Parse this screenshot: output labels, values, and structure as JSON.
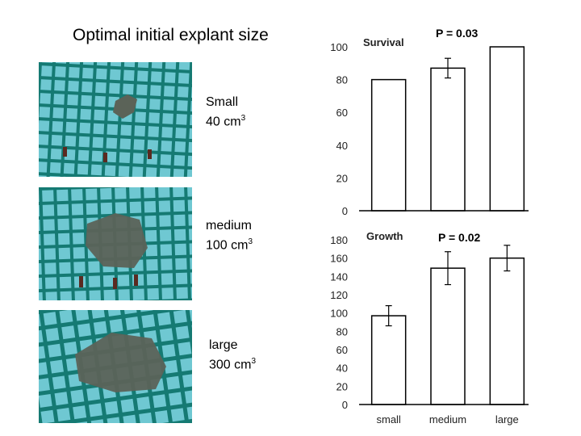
{
  "title": "Optimal initial explant size",
  "explants": [
    {
      "name": "Small",
      "volume": "40 cm",
      "unit_exp": "3"
    },
    {
      "name": "medium",
      "volume": "100 cm",
      "unit_exp": "3"
    },
    {
      "name": "large",
      "volume": "300 cm",
      "unit_exp": "3"
    }
  ],
  "colors": {
    "water": "#6fc8d2",
    "net": "#157a73",
    "coral": "#5b6358",
    "bar_fill": "#ffffff",
    "bar_stroke": "#000000"
  },
  "chart_data": [
    {
      "type": "bar",
      "title": "Survival",
      "annotation": "P = 0.03",
      "categories": [
        "small",
        "medium",
        "large"
      ],
      "values": [
        80,
        87,
        100
      ],
      "errors": [
        0,
        6,
        0
      ],
      "ylim": [
        0,
        100
      ],
      "yticks": [
        0,
        20,
        40,
        60,
        80,
        100
      ],
      "xlabel": "",
      "ylabel": ""
    },
    {
      "type": "bar",
      "title": "Growth",
      "annotation": "P = 0.02",
      "categories": [
        "small",
        "medium",
        "large"
      ],
      "values": [
        97,
        149,
        160
      ],
      "errors": [
        11,
        18,
        14
      ],
      "ylim": [
        0,
        180
      ],
      "yticks": [
        0,
        20,
        40,
        60,
        80,
        100,
        120,
        140,
        160,
        180
      ],
      "xlabel": "",
      "ylabel": ""
    }
  ]
}
